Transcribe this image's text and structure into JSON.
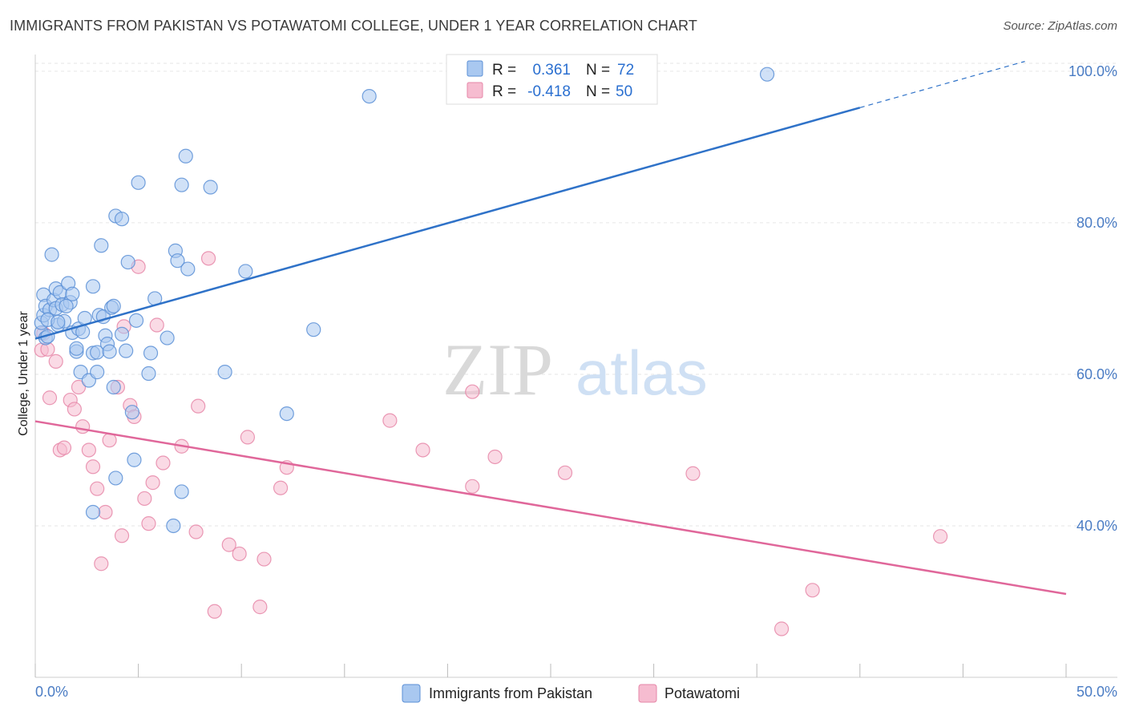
{
  "title": "IMMIGRANTS FROM PAKISTAN VS POTAWATOMI COLLEGE, UNDER 1 YEAR CORRELATION CHART",
  "source": "Source: ZipAtlas.com",
  "watermark": {
    "zip": "ZIP",
    "atlas": "atlas"
  },
  "colors": {
    "blue_fill": "#a9c8f0",
    "blue_stroke": "#5b8fd6",
    "blue_line": "#2f72c8",
    "pink_fill": "#f6bcd0",
    "pink_stroke": "#e687a8",
    "pink_line": "#e0679a",
    "grid": "#e6e6e6",
    "axis_label": "#4a7cc4"
  },
  "legend": {
    "rows": [
      {
        "r_label": "R =",
        "r_value": "0.361",
        "n_label": "N =",
        "n_value": "72",
        "series": "blue"
      },
      {
        "r_label": "R =",
        "r_value": "-0.418",
        "n_label": "N =",
        "n_value": "50",
        "series": "pink"
      }
    ]
  },
  "chart_data": {
    "type": "scatter",
    "title": "IMMIGRANTS FROM PAKISTAN VS POTAWATOMI COLLEGE, UNDER 1 YEAR CORRELATION CHART",
    "xlabel": "",
    "ylabel": "College, Under 1 year",
    "xlim": [
      0,
      50
    ],
    "ylim": [
      20,
      102
    ],
    "x_tick_labels": [
      "0.0%",
      "50.0%"
    ],
    "y_ticks": [
      40,
      60,
      80,
      100
    ],
    "y_tick_labels": [
      "40.0%",
      "60.0%",
      "80.0%",
      "100.0%"
    ],
    "grid": true,
    "legend_position": "top-center",
    "series": [
      {
        "name": "Immigrants from Pakistan",
        "color": "#a9c8f0",
        "trend": {
          "x": [
            0,
            40
          ],
          "y": [
            64.7,
            95.2
          ],
          "dashed_to": [
            48,
            101.3
          ]
        },
        "points": [
          [
            0.3,
            65.5
          ],
          [
            0.3,
            66.8
          ],
          [
            0.4,
            67.8
          ],
          [
            0.4,
            70.5
          ],
          [
            0.5,
            64.8
          ],
          [
            0.5,
            69.0
          ],
          [
            0.6,
            65.0
          ],
          [
            0.7,
            68.5
          ],
          [
            0.8,
            75.8
          ],
          [
            0.9,
            69.8
          ],
          [
            1.0,
            71.3
          ],
          [
            1.0,
            68.7
          ],
          [
            1.1,
            66.5
          ],
          [
            1.2,
            70.8
          ],
          [
            1.3,
            69.2
          ],
          [
            1.4,
            67.0
          ],
          [
            1.6,
            72.0
          ],
          [
            1.7,
            69.5
          ],
          [
            1.8,
            70.6
          ],
          [
            1.8,
            65.5
          ],
          [
            2.0,
            63.0
          ],
          [
            2.1,
            66.0
          ],
          [
            2.2,
            60.3
          ],
          [
            2.3,
            65.6
          ],
          [
            2.4,
            67.4
          ],
          [
            2.6,
            59.2
          ],
          [
            2.8,
            62.8
          ],
          [
            2.8,
            71.6
          ],
          [
            3.0,
            60.3
          ],
          [
            3.0,
            62.9
          ],
          [
            3.1,
            67.8
          ],
          [
            3.2,
            77.0
          ],
          [
            3.3,
            67.6
          ],
          [
            3.4,
            65.1
          ],
          [
            3.5,
            64.0
          ],
          [
            3.6,
            63.0
          ],
          [
            3.7,
            68.8
          ],
          [
            3.8,
            69.0
          ],
          [
            3.8,
            58.3
          ],
          [
            3.9,
            80.9
          ],
          [
            4.2,
            80.5
          ],
          [
            4.2,
            65.3
          ],
          [
            4.5,
            74.8
          ],
          [
            4.7,
            55.0
          ],
          [
            4.8,
            48.7
          ],
          [
            4.9,
            67.1
          ],
          [
            5.0,
            85.3
          ],
          [
            5.5,
            60.1
          ],
          [
            5.6,
            62.8
          ],
          [
            5.8,
            70.0
          ],
          [
            6.4,
            64.8
          ],
          [
            6.7,
            40.0
          ],
          [
            6.8,
            76.3
          ],
          [
            6.9,
            75.0
          ],
          [
            7.1,
            85.0
          ],
          [
            7.1,
            44.5
          ],
          [
            7.3,
            88.8
          ],
          [
            7.4,
            73.9
          ],
          [
            8.5,
            84.7
          ],
          [
            9.2,
            60.3
          ],
          [
            10.2,
            73.6
          ],
          [
            12.2,
            54.8
          ],
          [
            13.5,
            65.9
          ],
          [
            16.2,
            96.7
          ],
          [
            35.5,
            99.6
          ],
          [
            2.8,
            41.8
          ],
          [
            3.9,
            46.3
          ],
          [
            1.5,
            69.0
          ],
          [
            0.6,
            67.2
          ],
          [
            1.1,
            66.9
          ],
          [
            2.0,
            63.4
          ],
          [
            4.4,
            63.1
          ]
        ]
      },
      {
        "name": "Potawatomi",
        "color": "#f6bcd0",
        "trend": {
          "x": [
            0,
            50
          ],
          "y": [
            53.8,
            31.0
          ]
        },
        "points": [
          [
            0.3,
            63.2
          ],
          [
            0.4,
            65.4
          ],
          [
            0.6,
            63.3
          ],
          [
            0.7,
            56.9
          ],
          [
            1.0,
            61.7
          ],
          [
            1.2,
            50.0
          ],
          [
            1.4,
            50.3
          ],
          [
            1.7,
            56.6
          ],
          [
            1.9,
            55.4
          ],
          [
            2.1,
            58.3
          ],
          [
            2.3,
            53.1
          ],
          [
            2.6,
            50.0
          ],
          [
            2.8,
            47.8
          ],
          [
            3.0,
            44.9
          ],
          [
            3.2,
            35.0
          ],
          [
            3.4,
            41.8
          ],
          [
            3.6,
            51.3
          ],
          [
            4.0,
            58.3
          ],
          [
            4.2,
            38.7
          ],
          [
            4.3,
            66.3
          ],
          [
            4.6,
            55.9
          ],
          [
            4.8,
            54.4
          ],
          [
            5.0,
            74.2
          ],
          [
            5.3,
            43.6
          ],
          [
            5.5,
            40.3
          ],
          [
            5.7,
            45.7
          ],
          [
            5.9,
            66.5
          ],
          [
            6.2,
            48.3
          ],
          [
            7.1,
            50.5
          ],
          [
            7.8,
            39.2
          ],
          [
            7.9,
            55.8
          ],
          [
            8.4,
            75.3
          ],
          [
            8.7,
            28.7
          ],
          [
            9.4,
            37.5
          ],
          [
            9.9,
            36.3
          ],
          [
            10.3,
            51.7
          ],
          [
            10.9,
            29.3
          ],
          [
            11.1,
            35.6
          ],
          [
            11.9,
            45.0
          ],
          [
            12.2,
            47.7
          ],
          [
            17.2,
            53.9
          ],
          [
            18.8,
            50.0
          ],
          [
            21.2,
            57.7
          ],
          [
            21.2,
            45.2
          ],
          [
            22.3,
            49.1
          ],
          [
            25.7,
            47.0
          ],
          [
            31.9,
            46.9
          ],
          [
            36.2,
            26.4
          ],
          [
            37.7,
            31.5
          ],
          [
            43.9,
            38.6
          ]
        ]
      }
    ]
  },
  "bottom_legend": {
    "items": [
      {
        "label": "Immigrants from Pakistan",
        "series": "blue"
      },
      {
        "label": "Potawatomi",
        "series": "pink"
      }
    ]
  }
}
